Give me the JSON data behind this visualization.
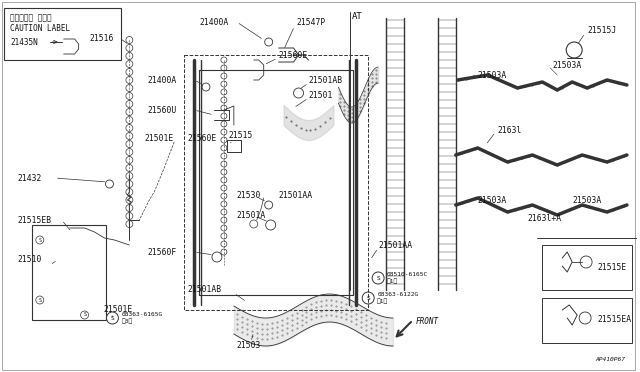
{
  "bg_color": "#ffffff",
  "line_color": "#333333",
  "text_color": "#111111",
  "fig_width": 6.4,
  "fig_height": 3.72,
  "dpi": 100,
  "diagram_ref": "AP410P67",
  "caution_jp": "コーション ラベル",
  "caution_en": "CAUTION LABEL",
  "part_21435N": "21435N",
  "part_AT": "AT",
  "part_FRONT": "FRONT"
}
